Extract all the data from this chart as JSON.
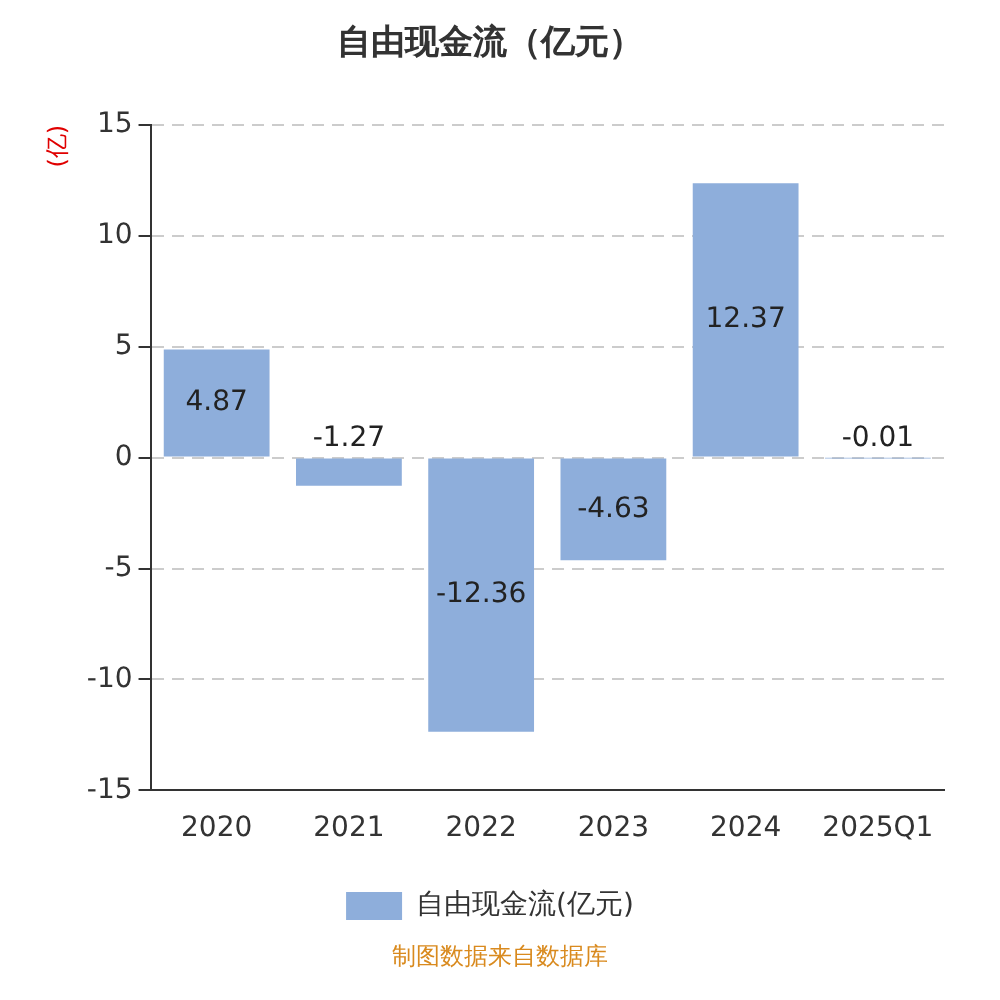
{
  "chart_data": {
    "type": "bar",
    "title": "自由现金流（亿元）",
    "ylabel": "(亿)",
    "categories": [
      "2020",
      "2021",
      "2022",
      "2023",
      "2024",
      "2025Q1"
    ],
    "series": [
      {
        "name": "自由现金流(亿元)",
        "color": "#8eaedb",
        "values": [
          4.87,
          -1.27,
          -12.36,
          -4.63,
          12.37,
          -0.01
        ]
      }
    ],
    "ylim": [
      -15,
      15
    ],
    "yticks": [
      -15,
      -10,
      -5,
      0,
      5,
      10,
      15
    ],
    "grid": "y",
    "legend": "bottom",
    "data_labels": true,
    "annotations": [
      "制图数据来自数据库"
    ]
  }
}
